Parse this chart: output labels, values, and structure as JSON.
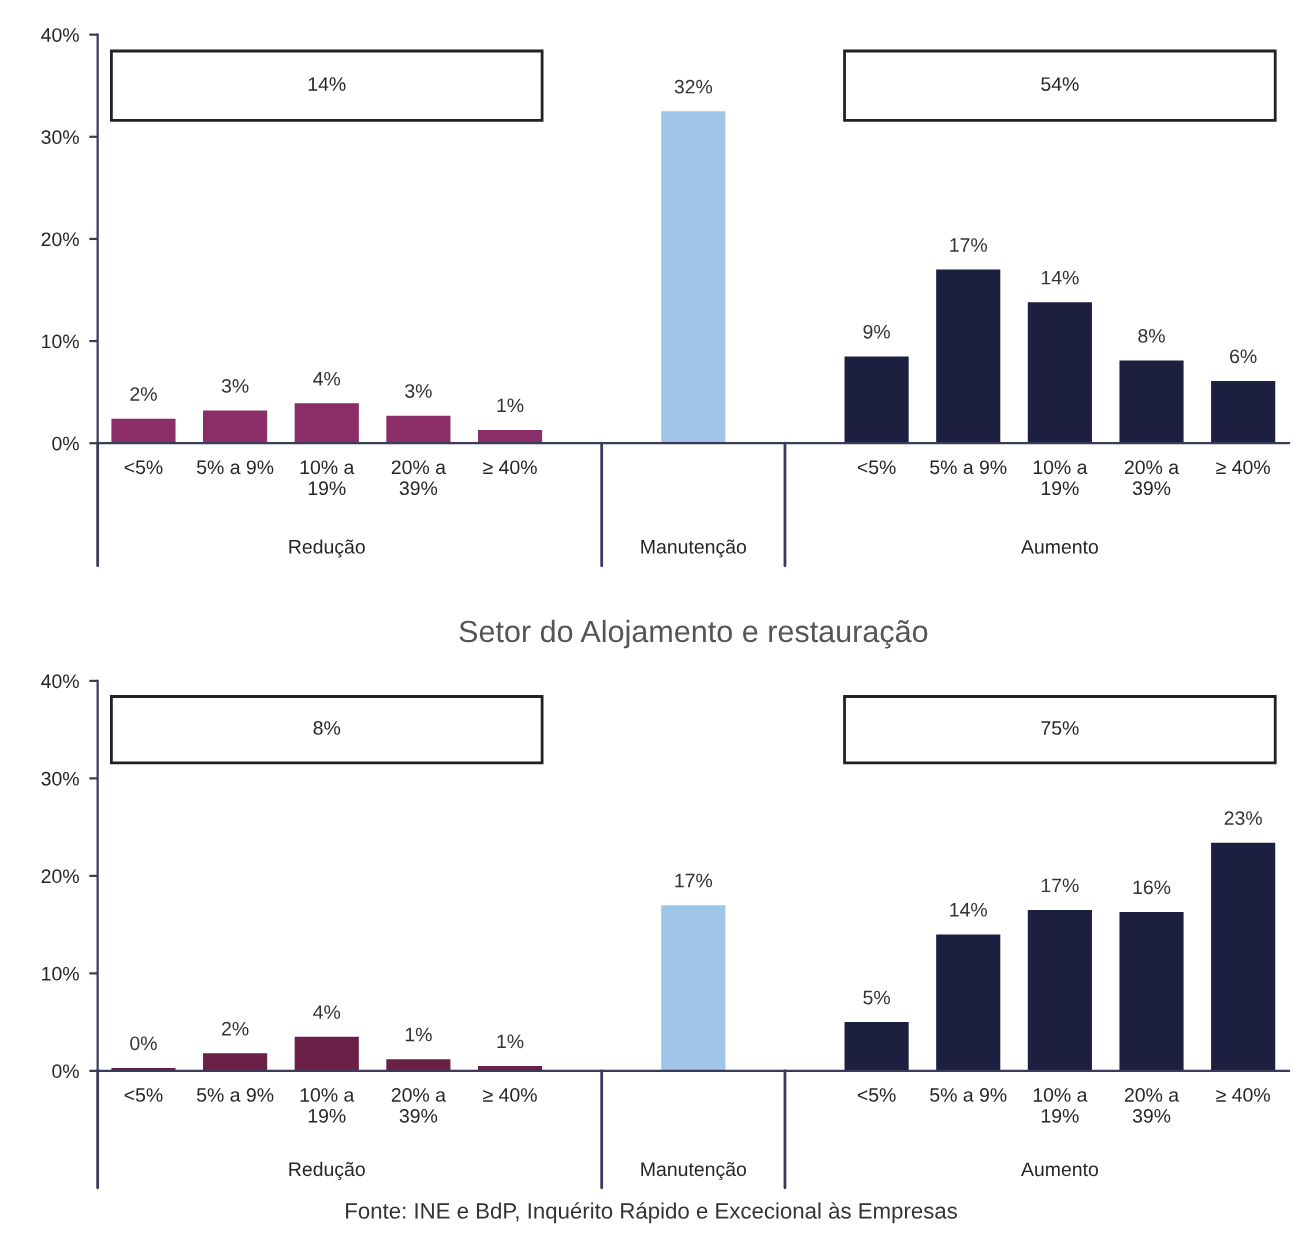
{
  "chart_data": [
    {
      "type": "bar",
      "categories": [
        "<5%",
        "5% a 9%",
        "10% a\n19%",
        "20% a\n39%",
        "≥ 40%",
        null,
        null,
        null,
        "<5%",
        "5% a 9%",
        "10% a\n19%",
        "20% a\n39%",
        "≥ 40%"
      ],
      "values": [
        2.4,
        3.2,
        3.9,
        2.7,
        1.3,
        null,
        32.5,
        null,
        8.5,
        17,
        13.8,
        8.1,
        6.1
      ],
      "value_labels": [
        "2%",
        "3%",
        "4%",
        "3%",
        "1%",
        null,
        "32%",
        null,
        "9%",
        "17%",
        "14%",
        "8%",
        "6%"
      ],
      "colors": [
        "#8b2d66",
        "#8b2d66",
        "#8b2d66",
        "#8b2d66",
        "#8b2d66",
        "#ffffff",
        "#9fc5e8",
        "#ffffff",
        "#1c1f3f",
        "#1c1f3f",
        "#1c1f3f",
        "#1c1f3f",
        "#1c1f3f"
      ],
      "ylim": [
        0,
        40
      ],
      "yticks": [
        {
          "value": 0,
          "label": "0%"
        },
        {
          "value": 10,
          "label": "10%"
        },
        {
          "value": 20,
          "label": "20%"
        },
        {
          "value": 30,
          "label": "30%"
        },
        {
          "value": 40,
          "label": "40%"
        }
      ],
      "grid": false,
      "legend": false,
      "annotations": [
        "14%",
        "54%",
        "Redução",
        "Manutenção",
        "Aumento"
      ]
    },
    {
      "type": "bar",
      "title": "Setor do Alojamento e restauração",
      "categories": [
        "<5%",
        "5% a 9%",
        "10% a\n19%",
        "20% a\n39%",
        "≥ 40%",
        null,
        null,
        null,
        "<5%",
        "5% a 9%",
        "10% a\n19%",
        "20% a\n39%",
        "≥ 40%"
      ],
      "values": [
        0.3,
        1.8,
        3.5,
        1.2,
        0.5,
        null,
        17,
        null,
        5,
        14,
        16.5,
        16.3,
        23.4
      ],
      "value_labels": [
        "0%",
        "2%",
        "4%",
        "1%",
        "1%",
        null,
        "17%",
        null,
        "5%",
        "14%",
        "17%",
        "16%",
        "23%"
      ],
      "colors": [
        "#6b2048",
        "#6b2048",
        "#6b2048",
        "#6b2048",
        "#6b2048",
        "#ffffff",
        "#9fc5e8",
        "#ffffff",
        "#1c1f3f",
        "#1c1f3f",
        "#1c1f3f",
        "#1c1f3f",
        "#1c1f3f"
      ],
      "ylim": [
        0,
        40
      ],
      "yticks": [
        {
          "value": 0,
          "label": "0%"
        },
        {
          "value": 10,
          "label": "10%"
        },
        {
          "value": 20,
          "label": "20%"
        },
        {
          "value": 30,
          "label": "30%"
        },
        {
          "value": 40,
          "label": "40%"
        }
      ],
      "grid": false,
      "legend": false,
      "annotations": [
        "8%",
        "75%",
        "Redução",
        "Manutenção",
        "Aumento",
        "Fonte: INE e BdP, Inquérito Rápido e Excecional às Empresas"
      ]
    }
  ]
}
